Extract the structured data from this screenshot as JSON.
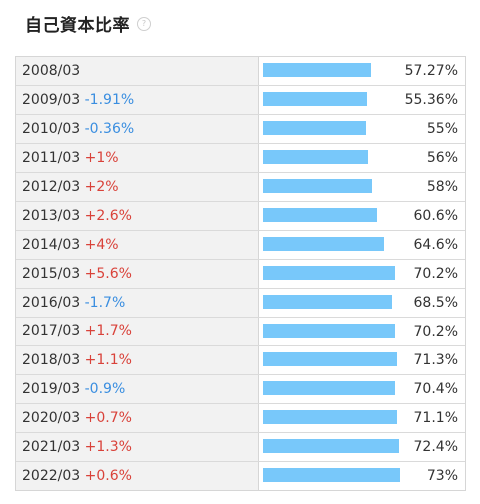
{
  "header": {
    "title": "自己資本比率",
    "help_icon": "question-circle-icon"
  },
  "colors": {
    "bar": "#78c8fa",
    "positive": "#d9423a",
    "negative": "#3a8ee0"
  },
  "chart_data": {
    "type": "bar",
    "orientation": "horizontal",
    "unit": "%",
    "xlim": [
      0,
      100
    ],
    "rows": [
      {
        "period": "2008/03",
        "change": "",
        "value": 57.27,
        "value_label": "57.27%"
      },
      {
        "period": "2009/03",
        "change": "-1.91%",
        "value": 55.36,
        "value_label": "55.36%"
      },
      {
        "period": "2010/03",
        "change": "-0.36%",
        "value": 55,
        "value_label": "55%"
      },
      {
        "period": "2011/03",
        "change": "+1%",
        "value": 56,
        "value_label": "56%"
      },
      {
        "period": "2012/03",
        "change": "+2%",
        "value": 58,
        "value_label": "58%"
      },
      {
        "period": "2013/03",
        "change": "+2.6%",
        "value": 60.6,
        "value_label": "60.6%"
      },
      {
        "period": "2014/03",
        "change": "+4%",
        "value": 64.6,
        "value_label": "64.6%"
      },
      {
        "period": "2015/03",
        "change": "+5.6%",
        "value": 70.2,
        "value_label": "70.2%"
      },
      {
        "period": "2016/03",
        "change": "-1.7%",
        "value": 68.5,
        "value_label": "68.5%"
      },
      {
        "period": "2017/03",
        "change": "+1.7%",
        "value": 70.2,
        "value_label": "70.2%"
      },
      {
        "period": "2018/03",
        "change": "+1.1%",
        "value": 71.3,
        "value_label": "71.3%"
      },
      {
        "period": "2019/03",
        "change": "-0.9%",
        "value": 70.4,
        "value_label": "70.4%"
      },
      {
        "period": "2020/03",
        "change": "+0.7%",
        "value": 71.1,
        "value_label": "71.1%"
      },
      {
        "period": "2021/03",
        "change": "+1.3%",
        "value": 72.4,
        "value_label": "72.4%"
      },
      {
        "period": "2022/03",
        "change": "+0.6%",
        "value": 73,
        "value_label": "73%"
      }
    ]
  }
}
